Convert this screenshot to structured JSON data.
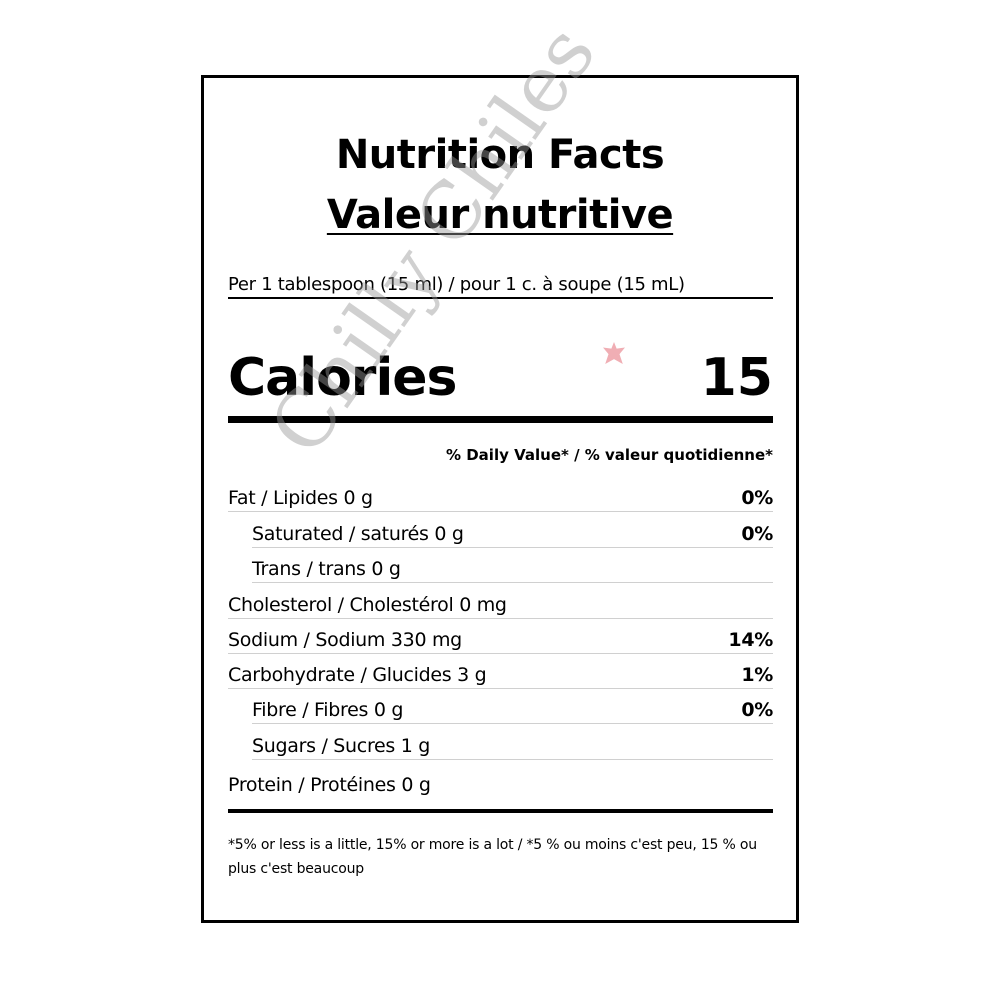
{
  "label": {
    "title_en": "Nutrition Facts",
    "title_fr": "Valeur nutritive",
    "serving": "Per 1 tablespoon (15 ml) / pour 1 c. à soupe (15 mL)",
    "calories_label": "Calories",
    "calories_value": "15",
    "daily_value_header": "% Daily Value* / % valeur quotidienne*",
    "rows": [
      {
        "name": "Fat / Lipides 0 g",
        "percent": "0%"
      },
      {
        "name": "Saturated / saturés 0 g",
        "percent": "0%"
      },
      {
        "name": "Trans / trans 0 g",
        "percent": ""
      },
      {
        "name": "Cholesterol / Cholestérol 0 mg",
        "percent": ""
      },
      {
        "name": "Sodium / Sodium 330 mg",
        "percent": "14%"
      },
      {
        "name": "Carbohydrate / Glucides 3 g",
        "percent": "1%"
      },
      {
        "name": "Fibre / Fibres 0 g",
        "percent": "0%"
      },
      {
        "name": "Sugars / Sucres 1 g",
        "percent": ""
      },
      {
        "name": "Protein / Protéines 0 g",
        "percent": ""
      }
    ],
    "footnote": "*5% or less is a little, 15% or more is a lot / *5 % ou moins c'est peu, 15 % ou plus c'est beaucoup"
  },
  "watermark": {
    "text": "Chilly Chiles",
    "color": "#969696",
    "accent_color": "#e67882"
  }
}
